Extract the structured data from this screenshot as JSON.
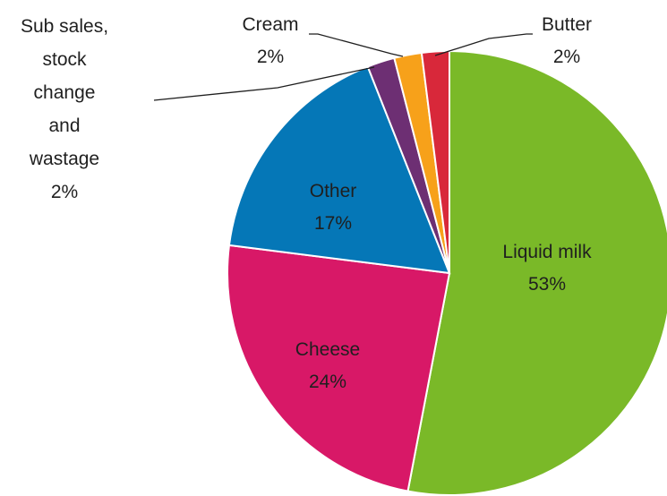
{
  "chart_data": {
    "type": "pie",
    "title": "",
    "slices": [
      {
        "label": "Liquid milk",
        "value": 53,
        "value_label": "53%",
        "color": "#7ab928"
      },
      {
        "label": "Cheese",
        "value": 24,
        "value_label": "24%",
        "color": "#d81867"
      },
      {
        "label": "Other",
        "value": 17,
        "value_label": "17%",
        "color": "#0577b7"
      },
      {
        "label": "Sub sales, stock change and wastage",
        "value": 2,
        "value_label": "2%",
        "color": "#6d2f73"
      },
      {
        "label": "Cream",
        "value": 2,
        "value_label": "2%",
        "color": "#f7a11a"
      },
      {
        "label": "Butter",
        "value": 2,
        "value_label": "2%",
        "color": "#d8283a"
      }
    ],
    "legend": "none",
    "data_labels": true
  }
}
